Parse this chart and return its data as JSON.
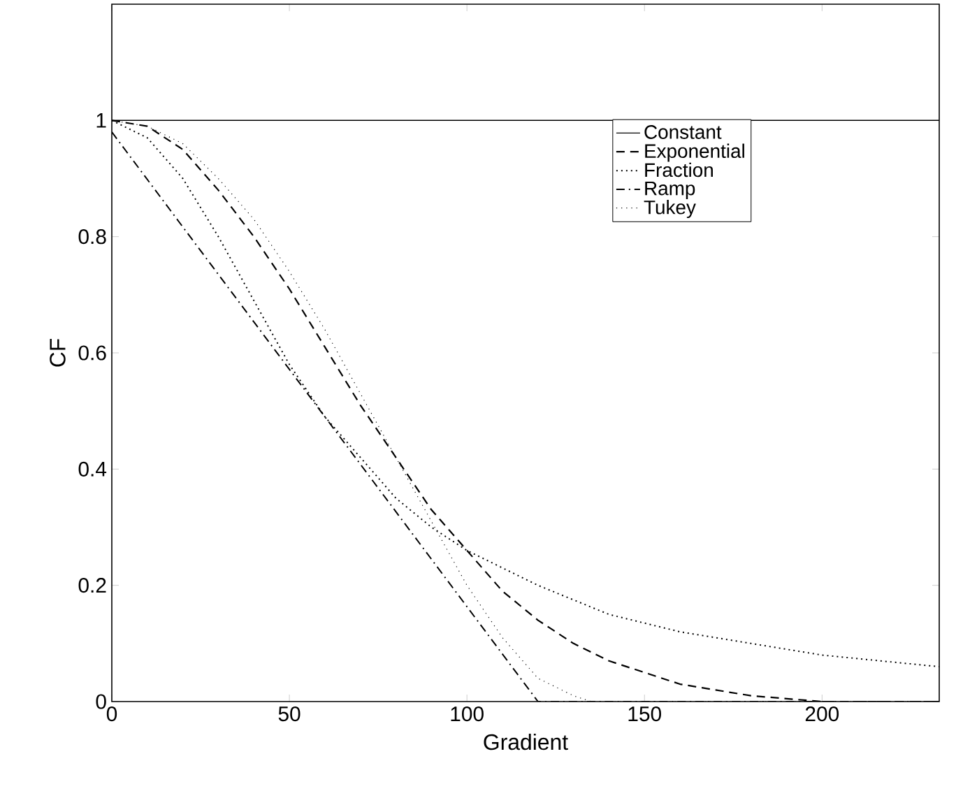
{
  "chart_data": {
    "type": "line",
    "xlabel": "Gradient",
    "ylabel": "CF",
    "xlim": [
      0,
      233
    ],
    "ylim": [
      0,
      1.2
    ],
    "xticks": [
      0,
      50,
      100,
      150,
      200
    ],
    "yticks": [
      0,
      0.2,
      0.4,
      0.6,
      0.8,
      1
    ],
    "grid": false,
    "legend": "top right",
    "marker": "none",
    "series": [
      {
        "name": "Constant",
        "color": "#000000",
        "line_style": "solid",
        "x": [
          0,
          233
        ],
        "values": [
          1,
          1
        ]
      },
      {
        "name": "Exponential",
        "color": "#000000",
        "line_style": "dashed",
        "x": [
          0,
          10,
          20,
          30,
          40,
          50,
          60,
          70,
          80,
          90,
          100,
          110,
          120,
          130,
          140,
          150,
          160,
          170,
          180,
          200,
          233
        ],
        "values": [
          1,
          0.99,
          0.95,
          0.88,
          0.8,
          0.71,
          0.61,
          0.51,
          0.42,
          0.33,
          0.26,
          0.19,
          0.14,
          0.1,
          0.07,
          0.05,
          0.03,
          0.02,
          0.01,
          0,
          0
        ]
      },
      {
        "name": "Fraction",
        "color": "#000000",
        "line_style": "dotted",
        "x": [
          0,
          10,
          20,
          30,
          40,
          50,
          60,
          70,
          80,
          90,
          100,
          120,
          140,
          160,
          180,
          200,
          233
        ],
        "values": [
          1,
          0.97,
          0.9,
          0.8,
          0.69,
          0.58,
          0.49,
          0.42,
          0.35,
          0.3,
          0.26,
          0.2,
          0.15,
          0.12,
          0.1,
          0.08,
          0.06
        ]
      },
      {
        "name": "Ramp",
        "color": "#000000",
        "line_style": "dashdot",
        "x": [
          0,
          120,
          233
        ],
        "values": [
          0.98,
          0,
          0
        ]
      },
      {
        "name": "Tukey",
        "color": "#000000",
        "line_style": "loosely dotted",
        "x": [
          0,
          10,
          20,
          30,
          40,
          50,
          60,
          70,
          80,
          90,
          100,
          110,
          120,
          130,
          135,
          233
        ],
        "values": [
          1,
          0.99,
          0.96,
          0.9,
          0.83,
          0.74,
          0.64,
          0.53,
          0.42,
          0.31,
          0.2,
          0.11,
          0.04,
          0.01,
          0,
          0
        ]
      }
    ]
  }
}
